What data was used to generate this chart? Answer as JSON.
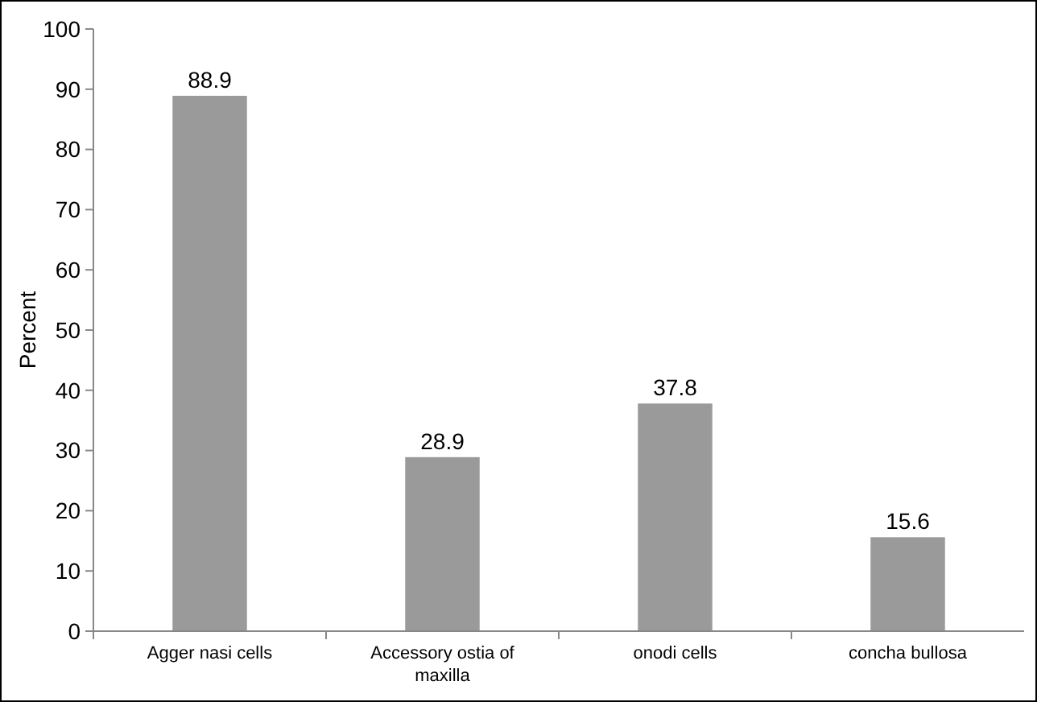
{
  "chart_data": {
    "type": "bar",
    "ylabel": "Percent",
    "categories": [
      "Agger nasi cells",
      "Accessory ostia of maxilla",
      "onodi cells",
      "concha bullosa"
    ],
    "values": [
      88.9,
      28.9,
      37.8,
      15.6
    ],
    "color": "#9a9a9a",
    "ylim": [
      0,
      100
    ],
    "yticks": [
      0,
      10,
      20,
      30,
      40,
      50,
      60,
      70,
      80,
      90,
      100
    ],
    "data_labels": true,
    "grid": false
  }
}
